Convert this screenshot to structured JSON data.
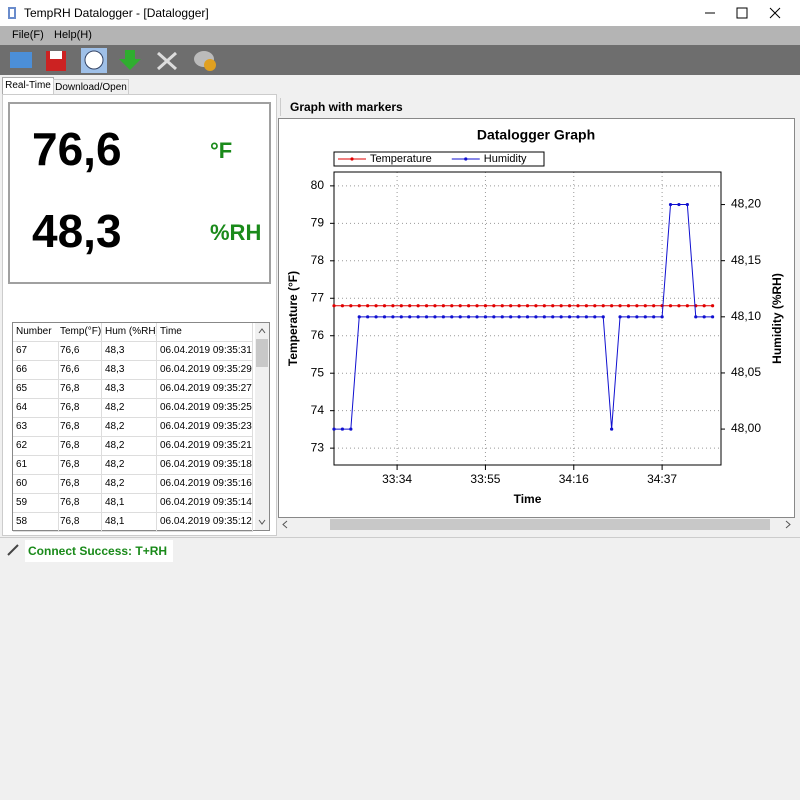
{
  "window": {
    "title": "TempRH Datalogger - [Datalogger]"
  },
  "menu": [
    "File(F)",
    "Help(H)"
  ],
  "tabs": [
    "Real-Time",
    "Download/Open"
  ],
  "readings": [
    {
      "value": "76,6",
      "unit": "°F"
    },
    {
      "value": "48,3",
      "unit": "%RH"
    }
  ],
  "table": {
    "columns": [
      "Number",
      "Temp(°F)",
      "Hum (%RH)",
      "Time"
    ],
    "rows": [
      [
        "67",
        "76,6",
        "48,3",
        "06.04.2019 09:35:31"
      ],
      [
        "66",
        "76,6",
        "48,3",
        "06.04.2019 09:35:29"
      ],
      [
        "65",
        "76,8",
        "48,3",
        "06.04.2019 09:35:27"
      ],
      [
        "64",
        "76,8",
        "48,2",
        "06.04.2019 09:35:25"
      ],
      [
        "63",
        "76,8",
        "48,2",
        "06.04.2019 09:35:23"
      ],
      [
        "62",
        "76,8",
        "48,2",
        "06.04.2019 09:35:21"
      ],
      [
        "61",
        "76,8",
        "48,2",
        "06.04.2019 09:35:18"
      ],
      [
        "60",
        "76,8",
        "48,2",
        "06.04.2019 09:35:16"
      ],
      [
        "59",
        "76,8",
        "48,1",
        "06.04.2019 09:35:14"
      ],
      [
        "58",
        "76,8",
        "48,1",
        "06.04.2019 09:35:12"
      ]
    ]
  },
  "graph_panel": {
    "header": "Graph with markers"
  },
  "chart_data": {
    "type": "line",
    "title": "Datalogger Graph",
    "x_label": "Time",
    "y_label": "Temperature (°F)",
    "y2_label": "Humidity (%RH)",
    "x": [
      "33:19",
      "33:21",
      "33:23",
      "33:25",
      "33:27",
      "33:29",
      "33:31",
      "33:33",
      "33:35",
      "33:37",
      "33:39",
      "33:41",
      "33:43",
      "33:45",
      "33:47",
      "33:49",
      "33:51",
      "33:53",
      "33:55",
      "33:57",
      "33:59",
      "34:01",
      "34:03",
      "34:05",
      "34:07",
      "34:09",
      "34:11",
      "34:13",
      "34:15",
      "34:17",
      "34:19",
      "34:21",
      "34:23",
      "34:25",
      "34:27",
      "34:29",
      "34:31",
      "34:33",
      "34:35",
      "34:37",
      "34:39",
      "34:41",
      "34:43",
      "34:45",
      "34:47",
      "34:49"
    ],
    "xlim": [
      "33:19",
      "34:51"
    ],
    "xticks": [
      "33:34",
      "33:55",
      "34:16",
      "34:37"
    ],
    "ylim": [
      72.55,
      80.37
    ],
    "yticks": [
      73,
      74,
      75,
      76,
      77,
      78,
      79,
      80
    ],
    "y2lim": [
      47.968,
      48.229
    ],
    "y2ticks": [
      {
        "value": 48.0,
        "label": "48,00"
      },
      {
        "value": 48.05,
        "label": "48,05"
      },
      {
        "value": 48.1,
        "label": "48,10"
      },
      {
        "value": 48.15,
        "label": "48,15"
      },
      {
        "value": 48.2,
        "label": "48,20"
      }
    ],
    "grid": true,
    "legend": "top-left",
    "series": [
      {
        "name": "Temperature",
        "color": "#e00000",
        "values": [
          76.8,
          76.8,
          76.8,
          76.8,
          76.8,
          76.8,
          76.8,
          76.8,
          76.8,
          76.8,
          76.8,
          76.8,
          76.8,
          76.8,
          76.8,
          76.8,
          76.8,
          76.8,
          76.8,
          76.8,
          76.8,
          76.8,
          76.8,
          76.8,
          76.8,
          76.8,
          76.8,
          76.8,
          76.8,
          76.8,
          76.8,
          76.8,
          76.8,
          76.8,
          76.8,
          76.8,
          76.8,
          76.8,
          76.8,
          76.8,
          76.8,
          76.8,
          76.8,
          76.8,
          76.8,
          76.8
        ]
      },
      {
        "name": "Humidity",
        "color": "#1010d0",
        "axis": "y2",
        "values": [
          48.0,
          48.0,
          48.0,
          48.1,
          48.1,
          48.1,
          48.1,
          48.1,
          48.1,
          48.1,
          48.1,
          48.1,
          48.1,
          48.1,
          48.1,
          48.1,
          48.1,
          48.1,
          48.1,
          48.1,
          48.1,
          48.1,
          48.1,
          48.1,
          48.1,
          48.1,
          48.1,
          48.1,
          48.1,
          48.1,
          48.1,
          48.1,
          48.1,
          48.0,
          48.1,
          48.1,
          48.1,
          48.1,
          48.1,
          48.1,
          48.2,
          48.2,
          48.2,
          48.1,
          48.1,
          48.1
        ]
      }
    ]
  },
  "status": "Connect Success: T+RH"
}
